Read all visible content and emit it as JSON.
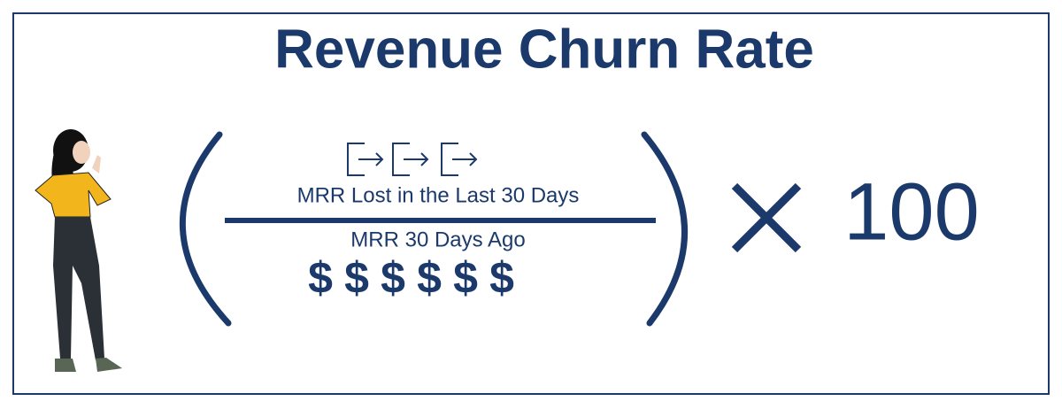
{
  "title": "Revenue Churn Rate",
  "formula": {
    "numerator": "MRR Lost in the Last 30 Days",
    "denominator": "MRR 30 Days Ago",
    "multiplier": "100",
    "currency_symbols": [
      "$",
      "$",
      "$",
      "$",
      "$",
      "$"
    ]
  }
}
